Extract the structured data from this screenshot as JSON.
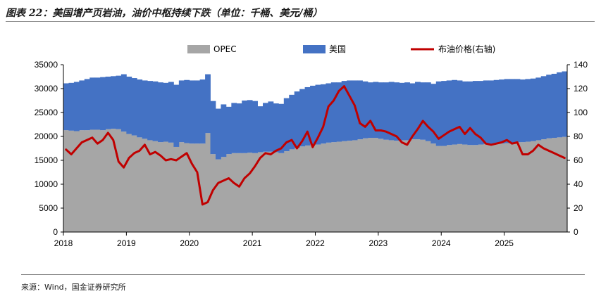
{
  "figure": {
    "title": "图表 22：美国增产页岩油，油价中枢持续下跌（单位：千桶、美元/桶）",
    "source": "来源：Wind，国金证券研究所"
  },
  "chart_data": {
    "type": "area",
    "x_type": "monthly",
    "x_start": "2018-01",
    "x_end": "2025-12",
    "x_tick_labels": [
      "2018",
      "2019",
      "2020",
      "2021",
      "2022",
      "2023",
      "2024",
      "2025"
    ],
    "y_left": {
      "range": [
        0,
        35000
      ],
      "ticks": [
        0,
        5000,
        10000,
        15000,
        20000,
        25000,
        30000,
        35000
      ]
    },
    "y_right": {
      "range": [
        0,
        140
      ],
      "ticks": [
        0,
        20,
        40,
        60,
        80,
        100,
        120,
        140
      ]
    },
    "grid": false,
    "legend_position": "top",
    "series": [
      {
        "name": "OPEC",
        "kind": "stacked-bar",
        "axis": "left",
        "color": "#a6a6a6",
        "values": [
          21300,
          21200,
          21100,
          21300,
          21300,
          21400,
          21400,
          21300,
          21500,
          21600,
          21500,
          21000,
          20500,
          20200,
          19800,
          19500,
          19200,
          19000,
          18800,
          18900,
          18700,
          17800,
          18800,
          18600,
          18500,
          18500,
          18500,
          20700,
          16300,
          15200,
          15700,
          16300,
          16500,
          16500,
          16500,
          16600,
          16500,
          16700,
          16800,
          16800,
          16700,
          16500,
          16900,
          17300,
          17600,
          17900,
          18100,
          18300,
          18300,
          18500,
          18700,
          18800,
          18900,
          19000,
          19100,
          19200,
          19400,
          19600,
          19700,
          19700,
          19500,
          19300,
          19200,
          19100,
          19200,
          19200,
          19400,
          19400,
          19300,
          19000,
          18500,
          18000,
          18000,
          18200,
          18300,
          18400,
          18300,
          18200,
          18200,
          18300,
          18400,
          18400,
          18500,
          18500,
          18600,
          18700,
          18800,
          18800,
          18900,
          19000,
          19200,
          19400,
          19600,
          19700,
          19800,
          19900
        ],
        "total_values": [
          31100,
          31200,
          31400,
          31700,
          32000,
          32300,
          32300,
          32400,
          32500,
          32600,
          32700,
          33000,
          32500,
          32200,
          31900,
          31700,
          31600,
          31500,
          31300,
          31200,
          31400,
          30800,
          31700,
          31800,
          31700,
          31700,
          31900,
          33000,
          27400,
          25800,
          26700,
          26200,
          27000,
          26900,
          27500,
          27600,
          27400,
          26300,
          27000,
          27300,
          26900,
          26800,
          28000,
          28700,
          29400,
          29900,
          30300,
          30600,
          30800,
          30900,
          31100,
          31300,
          31300,
          31600,
          31700,
          31700,
          31700,
          31500,
          31300,
          31400,
          31300,
          31300,
          31400,
          31300,
          31200,
          31300,
          31100,
          31400,
          31300,
          31300,
          31000,
          31500,
          31600,
          31700,
          31800,
          31700,
          31500,
          31500,
          31600,
          31600,
          31700,
          31700,
          31800,
          31900,
          32000,
          32000,
          32000,
          31900,
          32000,
          32100,
          32300,
          32600,
          32900,
          33100,
          33400,
          33600
        ]
      },
      {
        "name": "美国",
        "kind": "stacked-bar",
        "axis": "left",
        "color": "#4472c4",
        "values": [
          9800,
          10000,
          10300,
          10400,
          10700,
          10900,
          10900,
          11100,
          11000,
          11000,
          11200,
          12000,
          12000,
          12000,
          12100,
          12200,
          12400,
          12500,
          12500,
          12300,
          12700,
          13000,
          12900,
          13200,
          13200,
          13200,
          13400,
          12300,
          11100,
          10600,
          11000,
          9900,
          10500,
          10400,
          11000,
          11000,
          10900,
          9600,
          10200,
          10500,
          10200,
          10300,
          11100,
          11400,
          11800,
          12000,
          12200,
          12300,
          12500,
          12400,
          12400,
          12500,
          12400,
          12600,
          12600,
          12500,
          12300,
          11900,
          11600,
          11700,
          11800,
          12000,
          12200,
          12200,
          12000,
          12100,
          11700,
          12000,
          12000,
          12300,
          12500,
          13500,
          13600,
          13500,
          13500,
          13300,
          13200,
          13300,
          13400,
          13300,
          13300,
          13300,
          13300,
          13400,
          13400,
          13300,
          13200,
          13100,
          13100,
          13100,
          13100,
          13200,
          13300,
          13400,
          13600,
          13700
        ]
      },
      {
        "name": "布油价格(右轴)",
        "kind": "line",
        "axis": "right",
        "color": "#c00000",
        "values": [
          69,
          65,
          70,
          75,
          77,
          79,
          74,
          77,
          83,
          77,
          59,
          54,
          62,
          66,
          68,
          73,
          65,
          67,
          64,
          60,
          61,
          60,
          63,
          66,
          57,
          50,
          23,
          25,
          35,
          41,
          43,
          45,
          41,
          38,
          45,
          49,
          55,
          62,
          66,
          65,
          68,
          70,
          75,
          77,
          70,
          76,
          84,
          71,
          79,
          88,
          105,
          110,
          118,
          122,
          114,
          106,
          91,
          88,
          93,
          85,
          85,
          84,
          82,
          80,
          75,
          73,
          80,
          86,
          93,
          88,
          84,
          78,
          81,
          84,
          86,
          88,
          82,
          87,
          82,
          79,
          74,
          73,
          74,
          75,
          77,
          74,
          75,
          65,
          65,
          68,
          73,
          70,
          68,
          66,
          64,
          62
        ]
      }
    ]
  }
}
